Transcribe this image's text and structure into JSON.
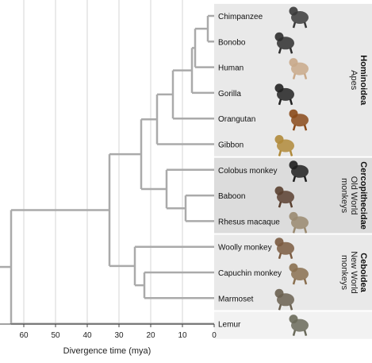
{
  "diagram": {
    "type": "phylogenetic-tree",
    "axis": {
      "title": "Divergence time (mya)",
      "ticks": [
        60,
        50,
        40,
        30,
        20,
        10,
        0
      ],
      "max": 67,
      "min": 0
    },
    "leaves": [
      {
        "id": "chimpanzee",
        "label": "Chimpanzee",
        "icon": "chimpanzee-icon"
      },
      {
        "id": "bonobo",
        "label": "Bonobo",
        "icon": "bonobo-icon"
      },
      {
        "id": "human",
        "label": "Human",
        "icon": "human-icon"
      },
      {
        "id": "gorilla",
        "label": "Gorilla",
        "icon": "gorilla-icon"
      },
      {
        "id": "orangutan",
        "label": "Orangutan",
        "icon": "orangutan-icon"
      },
      {
        "id": "gibbon",
        "label": "Gibbon",
        "icon": "gibbon-icon"
      },
      {
        "id": "colobus",
        "label": "Colobus monkey",
        "icon": "colobus-monkey-icon"
      },
      {
        "id": "baboon",
        "label": "Baboon",
        "icon": "baboon-icon"
      },
      {
        "id": "rhesus",
        "label": "Rhesus macaque",
        "icon": "rhesus-macaque-icon"
      },
      {
        "id": "woolly",
        "label": "Woolly monkey",
        "icon": "woolly-monkey-icon"
      },
      {
        "id": "capuchin",
        "label": "Capuchin monkey",
        "icon": "capuchin-monkey-icon"
      },
      {
        "id": "marmoset",
        "label": "Marmoset",
        "icon": "marmoset-icon"
      },
      {
        "id": "lemur",
        "label": "Lemur",
        "icon": "lemur-icon"
      }
    ],
    "nodes": [
      {
        "id": "n_pan",
        "time": 2,
        "children": [
          "chimpanzee",
          "bonobo"
        ]
      },
      {
        "id": "n_homininae_ch",
        "time": 6,
        "children": [
          "n_pan",
          "human"
        ]
      },
      {
        "id": "n_homininae",
        "time": 7,
        "children": [
          "n_homininae_ch",
          "gorilla"
        ]
      },
      {
        "id": "n_hominidae",
        "time": 13,
        "children": [
          "n_homininae",
          "orangutan"
        ]
      },
      {
        "id": "n_hominoidea",
        "time": 18,
        "children": [
          "n_hominidae",
          "gibbon"
        ]
      },
      {
        "id": "n_papionini",
        "time": 9,
        "children": [
          "baboon",
          "rhesus"
        ]
      },
      {
        "id": "n_cercopithecidae",
        "time": 15,
        "children": [
          "colobus",
          "n_papionini"
        ]
      },
      {
        "id": "n_catarrhini",
        "time": 23,
        "children": [
          "n_hominoidea",
          "n_cercopithecidae"
        ]
      },
      {
        "id": "n_cebidae",
        "time": 22,
        "children": [
          "capuchin",
          "marmoset"
        ]
      },
      {
        "id": "n_ceboidea",
        "time": 25,
        "children": [
          "woolly",
          "n_cebidae"
        ]
      },
      {
        "id": "n_anthropoidea",
        "time": 33,
        "children": [
          "n_catarrhini",
          "n_ceboidea"
        ]
      },
      {
        "id": "n_root",
        "time": 64,
        "children": [
          "n_anthropoidea",
          "lemur"
        ]
      }
    ],
    "root_time": 67,
    "clades": [
      {
        "name": "Hominoidea",
        "desc": [
          "Apes"
        ],
        "first": 0,
        "last": 5,
        "color": "#e9e9e9"
      },
      {
        "name": "Cercopithecidae",
        "desc": [
          "Old World",
          "monkeys"
        ],
        "first": 6,
        "last": 8,
        "color": "#dcdcdc"
      },
      {
        "name": "Ceboidea",
        "desc": [
          "New World",
          "monkeys"
        ],
        "first": 9,
        "last": 11,
        "color": "#e9e9e9"
      }
    ],
    "colors": {
      "branch": "#aaaaaa",
      "grid": "#d4d4d4",
      "band_outgroup": "#f2f2f2",
      "axis": "#444444"
    }
  }
}
